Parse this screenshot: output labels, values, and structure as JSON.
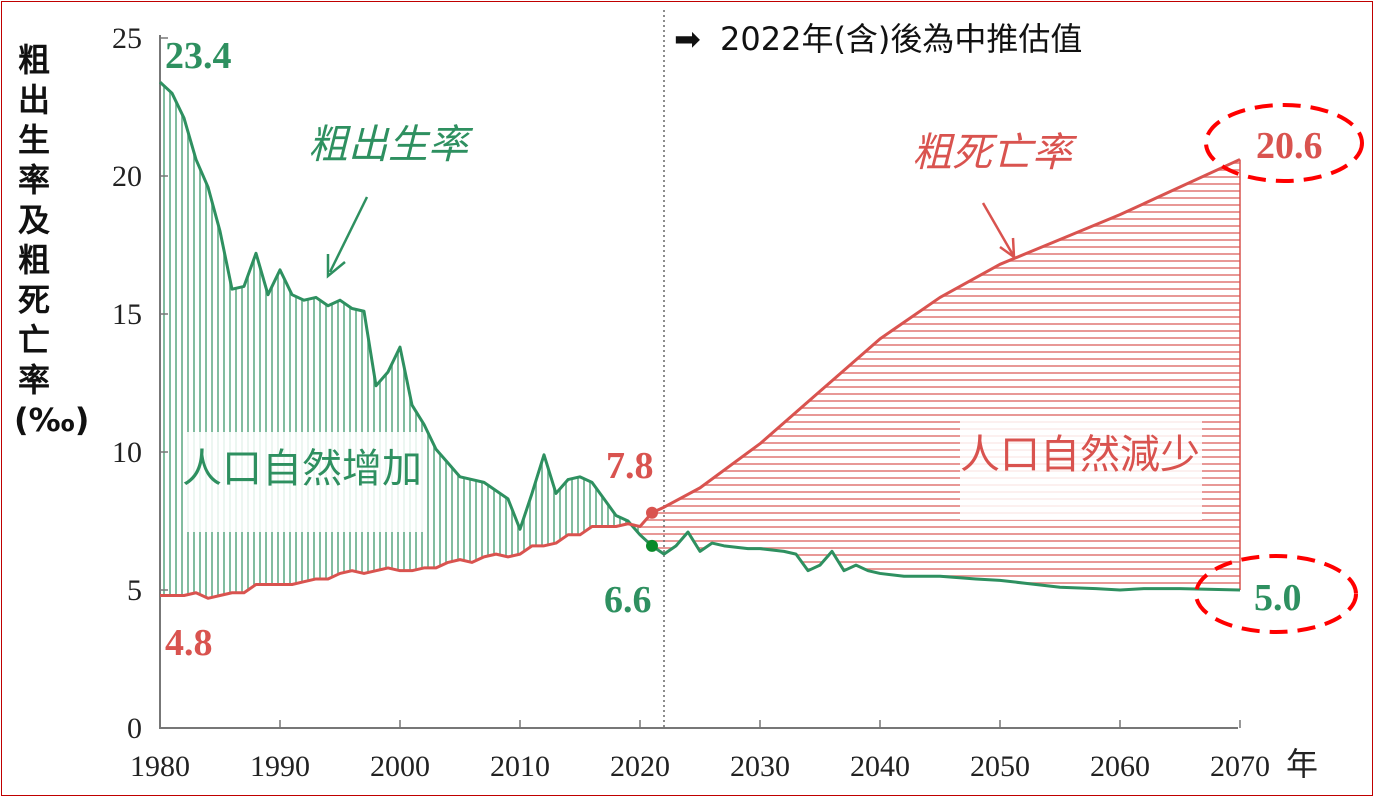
{
  "chart_data": {
    "type": "area",
    "ylabel": "粗出生率及粗死亡率(‰)",
    "xlabel": "年",
    "xlim": [
      1980,
      2070
    ],
    "ylim": [
      0,
      25
    ],
    "xticks": [
      1980,
      1990,
      2000,
      2010,
      2020,
      2030,
      2040,
      2050,
      2060,
      2070
    ],
    "yticks": [
      0,
      5,
      10,
      15,
      20,
      25
    ],
    "grid": false,
    "projection_note": "2022年(含)後為中推估值",
    "projection_start": 2022,
    "series": [
      {
        "name": "粗出生率",
        "color": "#2e9060",
        "x": [
          1980,
          1981,
          1982,
          1983,
          1984,
          1985,
          1986,
          1987,
          1988,
          1989,
          1990,
          1991,
          1992,
          1993,
          1994,
          1995,
          1996,
          1997,
          1998,
          1999,
          2000,
          2001,
          2002,
          2003,
          2004,
          2005,
          2006,
          2007,
          2008,
          2009,
          2010,
          2011,
          2012,
          2013,
          2014,
          2015,
          2016,
          2017,
          2018,
          2019,
          2020,
          2021,
          2022,
          2023,
          2024,
          2025,
          2026,
          2027,
          2028,
          2029,
          2030,
          2031,
          2032,
          2033,
          2034,
          2035,
          2036,
          2037,
          2038,
          2039,
          2040,
          2042,
          2045,
          2048,
          2050,
          2052,
          2055,
          2058,
          2060,
          2062,
          2065,
          2070
        ],
        "values": [
          23.4,
          23.0,
          22.1,
          20.6,
          19.6,
          18.0,
          15.9,
          16.0,
          17.2,
          15.7,
          16.6,
          15.7,
          15.5,
          15.6,
          15.3,
          15.5,
          15.2,
          15.1,
          12.4,
          12.9,
          13.8,
          11.7,
          11.0,
          10.1,
          9.6,
          9.1,
          9.0,
          8.9,
          8.6,
          8.3,
          7.2,
          8.5,
          9.9,
          8.5,
          9.0,
          9.1,
          8.9,
          8.3,
          7.7,
          7.5,
          7.0,
          6.6,
          6.3,
          6.6,
          7.1,
          6.4,
          6.7,
          6.6,
          6.55,
          6.5,
          6.5,
          6.45,
          6.4,
          6.3,
          5.7,
          5.9,
          6.4,
          5.7,
          5.9,
          5.7,
          5.6,
          5.5,
          5.5,
          5.4,
          5.35,
          5.25,
          5.1,
          5.05,
          5.0,
          5.05,
          5.05,
          5.0
        ]
      },
      {
        "name": "粗死亡率",
        "color": "#d9534f",
        "x": [
          1980,
          1981,
          1982,
          1983,
          1984,
          1985,
          1986,
          1987,
          1988,
          1989,
          1990,
          1991,
          1992,
          1993,
          1994,
          1995,
          1996,
          1997,
          1998,
          1999,
          2000,
          2001,
          2002,
          2003,
          2004,
          2005,
          2006,
          2007,
          2008,
          2009,
          2010,
          2011,
          2012,
          2013,
          2014,
          2015,
          2016,
          2017,
          2018,
          2019,
          2020,
          2021,
          2022,
          2025,
          2030,
          2035,
          2040,
          2045,
          2050,
          2055,
          2060,
          2065,
          2070
        ],
        "values": [
          4.8,
          4.8,
          4.8,
          4.9,
          4.7,
          4.8,
          4.9,
          4.9,
          5.2,
          5.2,
          5.2,
          5.2,
          5.3,
          5.4,
          5.4,
          5.6,
          5.7,
          5.6,
          5.7,
          5.8,
          5.7,
          5.7,
          5.8,
          5.8,
          6.0,
          6.1,
          6.0,
          6.2,
          6.3,
          6.2,
          6.3,
          6.6,
          6.6,
          6.7,
          7.0,
          7.0,
          7.3,
          7.3,
          7.3,
          7.4,
          7.3,
          7.8,
          8.0,
          8.7,
          10.3,
          12.2,
          14.1,
          15.6,
          16.8,
          17.7,
          18.6,
          19.6,
          20.6
        ]
      }
    ],
    "areas": [
      {
        "label": "人口自然增加",
        "color": "#2e9060",
        "hatch": "vertical"
      },
      {
        "label": "人口自然減少",
        "color": "#d9534f",
        "hatch": "horizontal"
      }
    ],
    "annotations": [
      {
        "text": "23.4",
        "color": "#2e9060"
      },
      {
        "text": "4.8",
        "color": "#d9534f"
      },
      {
        "text": "7.8",
        "color": "#d9534f"
      },
      {
        "text": "6.6",
        "color": "#2e9060"
      },
      {
        "text": "20.6",
        "color": "#d9534f",
        "circled": true
      },
      {
        "text": "5.0",
        "color": "#2e9060",
        "circled": true
      }
    ],
    "highlight_color": "#ff0000"
  }
}
